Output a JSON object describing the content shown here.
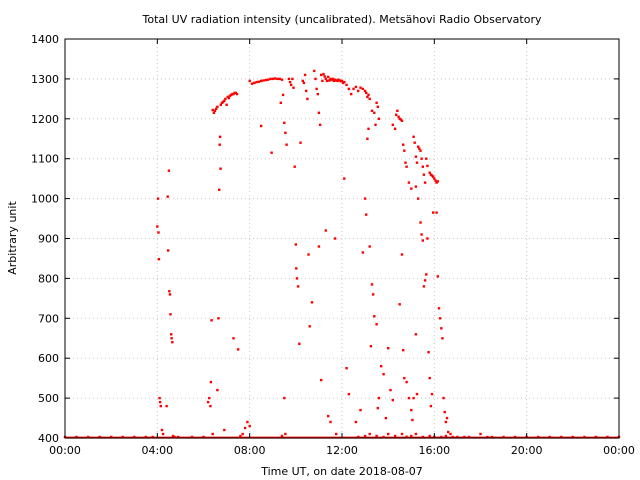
{
  "chart_data": {
    "type": "scatter",
    "title": "Total UV radiation intensity (uncalibrated). Metsähovi Radio Observatory",
    "xlabel": "Time UT, on date 2018-08-07",
    "ylabel": "Arbitrary unit",
    "xlim": [
      0,
      24
    ],
    "ylim": [
      400,
      1400
    ],
    "x_ticks": [
      {
        "value": 0,
        "label": "00:00"
      },
      {
        "value": 4,
        "label": "04:00"
      },
      {
        "value": 8,
        "label": "08:00"
      },
      {
        "value": 12,
        "label": "12:00"
      },
      {
        "value": 16,
        "label": "16:00"
      },
      {
        "value": 20,
        "label": "20:00"
      },
      {
        "value": 24,
        "label": "00:00"
      }
    ],
    "y_ticks": [
      {
        "value": 400,
        "label": "400"
      },
      {
        "value": 500,
        "label": "500"
      },
      {
        "value": 600,
        "label": "600"
      },
      {
        "value": 700,
        "label": "700"
      },
      {
        "value": 800,
        "label": "800"
      },
      {
        "value": 900,
        "label": "900"
      },
      {
        "value": 1000,
        "label": "1000"
      },
      {
        "value": 1100,
        "label": "1100"
      },
      {
        "value": 1200,
        "label": "1200"
      },
      {
        "value": 1300,
        "label": "1300"
      },
      {
        "value": 1400,
        "label": "1400"
      }
    ],
    "grid": true,
    "point_color": "#ff0000",
    "series": [
      {
        "points": [
          [
            0.0,
            401
          ],
          [
            0.5,
            401
          ],
          [
            1.0,
            401
          ],
          [
            1.5,
            401
          ],
          [
            2.0,
            401
          ],
          [
            2.5,
            401
          ],
          [
            3.0,
            401
          ],
          [
            3.5,
            401
          ],
          [
            3.8,
            401
          ],
          [
            4.0,
            930
          ],
          [
            4.03,
            1000
          ],
          [
            4.05,
            915
          ],
          [
            4.07,
            848
          ],
          [
            4.1,
            500
          ],
          [
            4.12,
            490
          ],
          [
            4.15,
            480
          ],
          [
            4.2,
            420
          ],
          [
            4.25,
            410
          ],
          [
            4.4,
            480
          ],
          [
            4.45,
            1005
          ],
          [
            4.47,
            870
          ],
          [
            4.5,
            1070
          ],
          [
            4.52,
            768
          ],
          [
            4.55,
            760
          ],
          [
            4.57,
            710
          ],
          [
            4.6,
            660
          ],
          [
            4.62,
            650
          ],
          [
            4.65,
            640
          ],
          [
            4.68,
            405
          ],
          [
            4.75,
            402
          ],
          [
            4.9,
            401
          ],
          [
            5.5,
            401
          ],
          [
            6.0,
            401
          ],
          [
            6.2,
            490
          ],
          [
            6.25,
            500
          ],
          [
            6.3,
            480
          ],
          [
            6.32,
            540
          ],
          [
            6.35,
            695
          ],
          [
            6.4,
            1222
          ],
          [
            6.45,
            1215
          ],
          [
            6.5,
            1220
          ],
          [
            6.55,
            1225
          ],
          [
            6.6,
            1230
          ],
          [
            6.65,
            700
          ],
          [
            6.68,
            1022
          ],
          [
            6.7,
            1135
          ],
          [
            6.72,
            1155
          ],
          [
            6.74,
            1075
          ],
          [
            6.75,
            1235
          ],
          [
            6.8,
            1240
          ],
          [
            6.85,
            1242
          ],
          [
            6.9,
            1245
          ],
          [
            6.95,
            1250
          ],
          [
            7.0,
            1235
          ],
          [
            7.05,
            1255
          ],
          [
            7.1,
            1252
          ],
          [
            7.15,
            1258
          ],
          [
            7.2,
            1260
          ],
          [
            7.25,
            1262
          ],
          [
            7.3,
            1262
          ],
          [
            7.35,
            1265
          ],
          [
            7.4,
            1265
          ],
          [
            7.45,
            1262
          ],
          [
            6.4,
            410
          ],
          [
            6.6,
            520
          ],
          [
            6.9,
            420
          ],
          [
            7.3,
            650
          ],
          [
            7.5,
            622
          ],
          [
            7.6,
            405
          ],
          [
            7.7,
            410
          ],
          [
            7.8,
            425
          ],
          [
            7.9,
            440
          ],
          [
            8.0,
            430
          ],
          [
            8.0,
            1295
          ],
          [
            8.1,
            1288
          ],
          [
            8.2,
            1290
          ],
          [
            8.3,
            1292
          ],
          [
            8.4,
            1293
          ],
          [
            8.5,
            1295
          ],
          [
            8.6,
            1296
          ],
          [
            8.7,
            1297
          ],
          [
            8.8,
            1298
          ],
          [
            8.9,
            1300
          ],
          [
            9.0,
            1300
          ],
          [
            9.1,
            1301
          ],
          [
            9.2,
            1300
          ],
          [
            9.3,
            1300
          ],
          [
            9.4,
            1298
          ],
          [
            8.5,
            1182
          ],
          [
            8.95,
            1115
          ],
          [
            9.35,
            1240
          ],
          [
            9.45,
            1260
          ],
          [
            9.5,
            1190
          ],
          [
            9.55,
            1165
          ],
          [
            9.6,
            1135
          ],
          [
            9.4,
            405
          ],
          [
            9.5,
            500
          ],
          [
            9.55,
            410
          ],
          [
            9.7,
            1300
          ],
          [
            9.75,
            1292
          ],
          [
            9.8,
            1285
          ],
          [
            9.85,
            1300
          ],
          [
            9.9,
            1278
          ],
          [
            9.95,
            1080
          ],
          [
            10.0,
            885
          ],
          [
            10.02,
            825
          ],
          [
            10.05,
            800
          ],
          [
            10.1,
            780
          ],
          [
            10.15,
            636
          ],
          [
            10.2,
            1140
          ],
          [
            10.3,
            1295
          ],
          [
            10.35,
            1290
          ],
          [
            10.4,
            1310
          ],
          [
            10.45,
            1270
          ],
          [
            10.5,
            1250
          ],
          [
            10.55,
            860
          ],
          [
            10.6,
            680
          ],
          [
            10.7,
            740
          ],
          [
            10.8,
            1320
          ],
          [
            10.85,
            1300
          ],
          [
            10.9,
            1275
          ],
          [
            10.95,
            1262
          ],
          [
            11.0,
            1215
          ],
          [
            11.05,
            1185
          ],
          [
            11.1,
            1310
          ],
          [
            11.15,
            1295
          ],
          [
            11.2,
            1312
          ],
          [
            11.25,
            1306
          ],
          [
            11.3,
            1300
          ],
          [
            11.35,
            1295
          ],
          [
            11.4,
            1305
          ],
          [
            11.45,
            1296
          ],
          [
            11.5,
            1300
          ],
          [
            11.55,
            1298
          ],
          [
            11.6,
            1300
          ],
          [
            11.65,
            1295
          ],
          [
            11.7,
            1298
          ],
          [
            11.75,
            1296
          ],
          [
            11.8,
            1295
          ],
          [
            11.85,
            1298
          ],
          [
            11.9,
            1296
          ],
          [
            11.95,
            1294
          ],
          [
            12.0,
            1295
          ],
          [
            12.05,
            1290
          ],
          [
            12.1,
            1292
          ],
          [
            11.0,
            880
          ],
          [
            11.1,
            545
          ],
          [
            11.3,
            920
          ],
          [
            11.4,
            455
          ],
          [
            11.5,
            440
          ],
          [
            11.7,
            900
          ],
          [
            11.75,
            410
          ],
          [
            12.1,
            1050
          ],
          [
            12.2,
            575
          ],
          [
            12.2,
            1285
          ],
          [
            12.3,
            1275
          ],
          [
            12.4,
            1262
          ],
          [
            12.5,
            1275
          ],
          [
            12.6,
            1280
          ],
          [
            12.7,
            1270
          ],
          [
            12.8,
            1278
          ],
          [
            12.9,
            1275
          ],
          [
            13.0,
            1270
          ],
          [
            13.05,
            1265
          ],
          [
            13.1,
            1255
          ],
          [
            13.15,
            1260
          ],
          [
            13.2,
            1250
          ],
          [
            13.3,
            1220
          ],
          [
            13.4,
            1215
          ],
          [
            13.5,
            1240
          ],
          [
            13.55,
            1230
          ],
          [
            13.6,
            1200
          ],
          [
            12.3,
            510
          ],
          [
            12.6,
            440
          ],
          [
            12.8,
            470
          ],
          [
            12.9,
            865
          ],
          [
            13.0,
            1000
          ],
          [
            13.05,
            960
          ],
          [
            13.1,
            1150
          ],
          [
            13.15,
            1175
          ],
          [
            13.2,
            880
          ],
          [
            13.25,
            630
          ],
          [
            13.3,
            785
          ],
          [
            13.35,
            760
          ],
          [
            13.4,
            705
          ],
          [
            13.45,
            1185
          ],
          [
            13.5,
            685
          ],
          [
            13.55,
            475
          ],
          [
            13.6,
            500
          ],
          [
            13.7,
            580
          ],
          [
            13.8,
            560
          ],
          [
            13.9,
            450
          ],
          [
            14.0,
            625
          ],
          [
            14.1,
            520
          ],
          [
            14.2,
            495
          ],
          [
            14.2,
            1185
          ],
          [
            14.3,
            1175
          ],
          [
            14.35,
            1210
          ],
          [
            14.4,
            1220
          ],
          [
            14.45,
            1205
          ],
          [
            14.5,
            1200
          ],
          [
            14.55,
            1198
          ],
          [
            14.6,
            1195
          ],
          [
            14.65,
            1135
          ],
          [
            14.7,
            1120
          ],
          [
            14.75,
            1090
          ],
          [
            14.8,
            1080
          ],
          [
            14.9,
            1040
          ],
          [
            14.5,
            735
          ],
          [
            14.6,
            860
          ],
          [
            14.65,
            620
          ],
          [
            14.7,
            550
          ],
          [
            14.8,
            540
          ],
          [
            14.9,
            500
          ],
          [
            15.0,
            470
          ],
          [
            15.05,
            445
          ],
          [
            15.1,
            500
          ],
          [
            15.2,
            660
          ],
          [
            15.25,
            510
          ],
          [
            15.1,
            1155
          ],
          [
            15.15,
            1140
          ],
          [
            15.2,
            1105
          ],
          [
            15.25,
            1090
          ],
          [
            15.3,
            1130
          ],
          [
            15.35,
            1125
          ],
          [
            15.4,
            1120
          ],
          [
            15.45,
            1100
          ],
          [
            15.5,
            1080
          ],
          [
            15.55,
            1060
          ],
          [
            15.6,
            1040
          ],
          [
            15.65,
            1100
          ],
          [
            15.7,
            1082
          ],
          [
            15.8,
            1065
          ],
          [
            15.85,
            1060
          ],
          [
            15.9,
            1058
          ],
          [
            15.95,
            1055
          ],
          [
            16.0,
            1050
          ],
          [
            16.05,
            1045
          ],
          [
            16.1,
            1040
          ],
          [
            16.15,
            1043
          ],
          [
            15.0,
            1025
          ],
          [
            15.2,
            1030
          ],
          [
            15.3,
            1000
          ],
          [
            15.4,
            940
          ],
          [
            15.45,
            910
          ],
          [
            15.5,
            895
          ],
          [
            15.55,
            780
          ],
          [
            15.6,
            795
          ],
          [
            15.65,
            810
          ],
          [
            15.7,
            900
          ],
          [
            15.75,
            615
          ],
          [
            15.8,
            550
          ],
          [
            15.85,
            480
          ],
          [
            15.9,
            510
          ],
          [
            15.95,
            965
          ],
          [
            16.1,
            965
          ],
          [
            16.15,
            805
          ],
          [
            16.2,
            725
          ],
          [
            16.25,
            700
          ],
          [
            16.3,
            675
          ],
          [
            16.35,
            650
          ],
          [
            16.4,
            500
          ],
          [
            16.45,
            465
          ],
          [
            16.5,
            440
          ],
          [
            16.55,
            450
          ],
          [
            16.6,
            415
          ],
          [
            16.7,
            410
          ],
          [
            12.7,
            402
          ],
          [
            13.0,
            405
          ],
          [
            13.2,
            410
          ],
          [
            13.5,
            405
          ],
          [
            13.8,
            402
          ],
          [
            14.0,
            410
          ],
          [
            14.3,
            405
          ],
          [
            14.6,
            410
          ],
          [
            14.8,
            403
          ],
          [
            15.0,
            405
          ],
          [
            15.2,
            410
          ],
          [
            15.5,
            402
          ],
          [
            15.8,
            405
          ],
          [
            16.0,
            402
          ],
          [
            16.3,
            402
          ],
          [
            16.5,
            405
          ],
          [
            16.8,
            402
          ],
          [
            17.0,
            402
          ],
          [
            17.3,
            402
          ],
          [
            17.5,
            402
          ],
          [
            18.0,
            410
          ],
          [
            18.3,
            402
          ],
          [
            18.5,
            401
          ],
          [
            19.0,
            401
          ],
          [
            19.5,
            401
          ],
          [
            20.0,
            401
          ],
          [
            20.5,
            401
          ],
          [
            21.0,
            401
          ],
          [
            21.5,
            401
          ],
          [
            22.0,
            401
          ],
          [
            22.5,
            401
          ],
          [
            23.0,
            401
          ],
          [
            23.5,
            401
          ],
          [
            24.0,
            401
          ]
        ]
      }
    ]
  }
}
